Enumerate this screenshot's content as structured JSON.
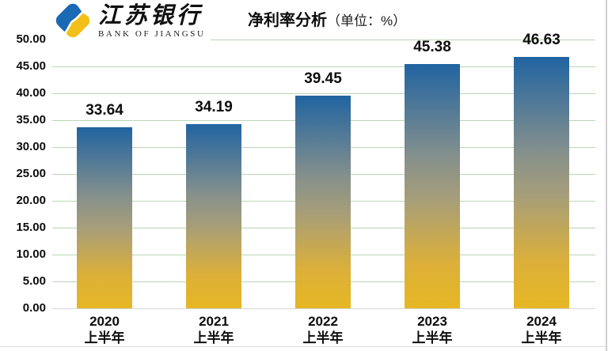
{
  "header": {
    "logo": {
      "bank_name_cn": "江苏银行",
      "bank_name_en": "BANK OF JIANGSU",
      "logo_blue": "#1A69B4",
      "logo_yellow": "#F2C019"
    },
    "title": "净利率分析",
    "unit_label": "（单位：%）"
  },
  "chart_data": {
    "type": "bar",
    "title": "净利率分析（单位：%）",
    "unit": "%",
    "categories": [
      {
        "year": "2020",
        "period": "上半年"
      },
      {
        "year": "2021",
        "period": "上半年"
      },
      {
        "year": "2022",
        "period": "上半年"
      },
      {
        "year": "2023",
        "period": "上半年"
      },
      {
        "year": "2024",
        "period": "上半年"
      }
    ],
    "values": [
      33.64,
      34.19,
      39.45,
      45.38,
      46.63
    ],
    "value_labels": [
      "33.64",
      "34.19",
      "39.45",
      "45.38",
      "46.63"
    ],
    "ylim": [
      0,
      50
    ],
    "ytick_step": 5,
    "ytick_decimals": 2,
    "grid": true,
    "legend": false,
    "gridline_color": "#b9d7b4",
    "baseline_color": "#d6d6d6",
    "bar_gradient": [
      {
        "pct": 0,
        "color": "#2164A1"
      },
      {
        "pct": 38,
        "color": "#85908C"
      },
      {
        "pct": 55,
        "color": "#A69E7A"
      },
      {
        "pct": 82,
        "color": "#DCB039"
      },
      {
        "pct": 100,
        "color": "#E6B724"
      }
    ]
  }
}
